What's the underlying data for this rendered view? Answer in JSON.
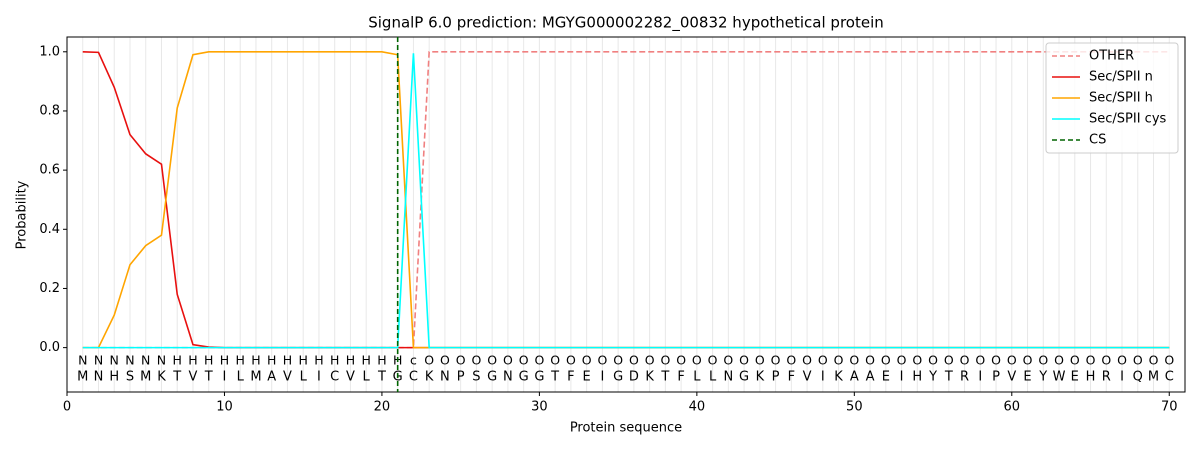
{
  "chart_data": {
    "type": "line",
    "title": "SignalP 6.0 prediction: MGYG000002282_00832 hypothetical protein",
    "x_label": "Protein sequence",
    "y_label": "Probability",
    "x": [
      1,
      2,
      3,
      4,
      5,
      6,
      7,
      8,
      9,
      10,
      11,
      12,
      13,
      14,
      15,
      16,
      17,
      18,
      19,
      20,
      21,
      22,
      23,
      24,
      25,
      26,
      27,
      28,
      29,
      30,
      31,
      32,
      33,
      34,
      35,
      36,
      37,
      38,
      39,
      40,
      41,
      42,
      43,
      44,
      45,
      46,
      47,
      48,
      49,
      50,
      51,
      52,
      53,
      54,
      55,
      56,
      57,
      58,
      59,
      60,
      61,
      62,
      63,
      64,
      65,
      66,
      67,
      68,
      69,
      70
    ],
    "sequence": [
      "M",
      "N",
      "H",
      "S",
      "M",
      "K",
      "T",
      "V",
      "T",
      "I",
      "L",
      "M",
      "A",
      "V",
      "L",
      "I",
      "C",
      "V",
      "L",
      "T",
      "G",
      "C",
      "K",
      "N",
      "P",
      "S",
      "G",
      "N",
      "G",
      "G",
      "T",
      "F",
      "E",
      "I",
      "G",
      "D",
      "K",
      "T",
      "F",
      "L",
      "L",
      "N",
      "G",
      "K",
      "P",
      "F",
      "V",
      "I",
      "K",
      "A",
      "A",
      "E",
      "I",
      "H",
      "Y",
      "T",
      "R",
      "I",
      "P",
      "V",
      "E",
      "Y",
      "W",
      "E",
      "H",
      "R",
      "I",
      "Q",
      "M",
      "C"
    ],
    "labels": [
      "N",
      "N",
      "N",
      "N",
      "N",
      "N",
      "H",
      "H",
      "H",
      "H",
      "H",
      "H",
      "H",
      "H",
      "H",
      "H",
      "H",
      "H",
      "H",
      "H",
      "H",
      "c",
      "O",
      "O",
      "O",
      "O",
      "O",
      "O",
      "O",
      "O",
      "O",
      "O",
      "O",
      "O",
      "O",
      "O",
      "O",
      "O",
      "O",
      "O",
      "O",
      "O",
      "O",
      "O",
      "O",
      "O",
      "O",
      "O",
      "O",
      "O",
      "O",
      "O",
      "O",
      "O",
      "O",
      "O",
      "O",
      "O",
      "O",
      "O",
      "O",
      "O",
      "O",
      "O",
      "O",
      "O",
      "O",
      "O",
      "O",
      "O"
    ],
    "label_colors": {
      "N": "#ff0000",
      "H": "#ffa500",
      "c": "#00e5ee",
      "O": "#808080"
    },
    "series": [
      {
        "name": "OTHER",
        "color": "#f08080",
        "dash": true,
        "values": [
          0,
          0,
          0,
          0,
          0,
          0,
          0,
          0,
          0,
          0,
          0,
          0,
          0,
          0,
          0,
          0,
          0,
          0,
          0,
          0,
          0,
          0,
          1,
          1,
          1,
          1,
          1,
          1,
          1,
          1,
          1,
          1,
          1,
          1,
          1,
          1,
          1,
          1,
          1,
          1,
          1,
          1,
          1,
          1,
          1,
          1,
          1,
          1,
          1,
          1,
          1,
          1,
          1,
          1,
          1,
          1,
          1,
          1,
          1,
          1,
          1,
          1,
          1,
          1,
          1,
          1,
          1,
          1,
          1,
          1
        ]
      },
      {
        "name": "Sec/SPII n",
        "color": "#e8100f",
        "dash": false,
        "values": [
          1,
          0.998,
          0.88,
          0.72,
          0.655,
          0.62,
          0.18,
          0.01,
          0.002,
          0,
          0,
          0,
          0,
          0,
          0,
          0,
          0,
          0,
          0,
          0,
          0,
          0,
          0,
          0,
          0,
          0,
          0,
          0,
          0,
          0,
          0,
          0,
          0,
          0,
          0,
          0,
          0,
          0,
          0,
          0,
          0,
          0,
          0,
          0,
          0,
          0,
          0,
          0,
          0,
          0,
          0,
          0,
          0,
          0,
          0,
          0,
          0,
          0,
          0,
          0,
          0,
          0,
          0,
          0,
          0,
          0,
          0,
          0,
          0,
          0
        ]
      },
      {
        "name": "Sec/SPII h",
        "color": "#ffa500",
        "dash": false,
        "values": [
          0,
          0,
          0.11,
          0.28,
          0.345,
          0.38,
          0.81,
          0.99,
          1,
          1,
          1,
          1,
          1,
          1,
          1,
          1,
          1,
          1,
          1,
          1,
          0.99,
          0,
          0,
          0,
          0,
          0,
          0,
          0,
          0,
          0,
          0,
          0,
          0,
          0,
          0,
          0,
          0,
          0,
          0,
          0,
          0,
          0,
          0,
          0,
          0,
          0,
          0,
          0,
          0,
          0,
          0,
          0,
          0,
          0,
          0,
          0,
          0,
          0,
          0,
          0,
          0,
          0,
          0,
          0,
          0,
          0,
          0,
          0,
          0,
          0
        ]
      },
      {
        "name": "Sec/SPII cys",
        "color": "#00ffff",
        "dash": false,
        "values": [
          0,
          0,
          0,
          0,
          0,
          0,
          0,
          0,
          0,
          0,
          0,
          0,
          0,
          0,
          0,
          0,
          0,
          0,
          0,
          0,
          0,
          0.995,
          0,
          0,
          0,
          0,
          0,
          0,
          0,
          0,
          0,
          0,
          0,
          0,
          0,
          0,
          0,
          0,
          0,
          0,
          0,
          0,
          0,
          0,
          0,
          0,
          0,
          0,
          0,
          0,
          0,
          0,
          0,
          0,
          0,
          0,
          0,
          0,
          0,
          0,
          0,
          0,
          0,
          0,
          0,
          0,
          0,
          0,
          0,
          0
        ]
      }
    ],
    "vlines": [
      {
        "name": "CS",
        "color": "#006400",
        "x": 21
      }
    ],
    "xlim": [
      0,
      71
    ],
    "ylim": [
      -0.15,
      1.05
    ],
    "xticks": [
      0,
      10,
      20,
      30,
      40,
      50,
      60,
      70
    ],
    "yticks": [
      {
        "value": 0,
        "label": "0.0"
      },
      {
        "value": 0.2,
        "label": "0.2"
      },
      {
        "value": 0.4,
        "label": "0.4"
      },
      {
        "value": 0.6,
        "label": "0.6"
      },
      {
        "value": 0.8,
        "label": "0.8"
      },
      {
        "value": 1,
        "label": "1.0"
      }
    ],
    "legend": "upper right"
  }
}
